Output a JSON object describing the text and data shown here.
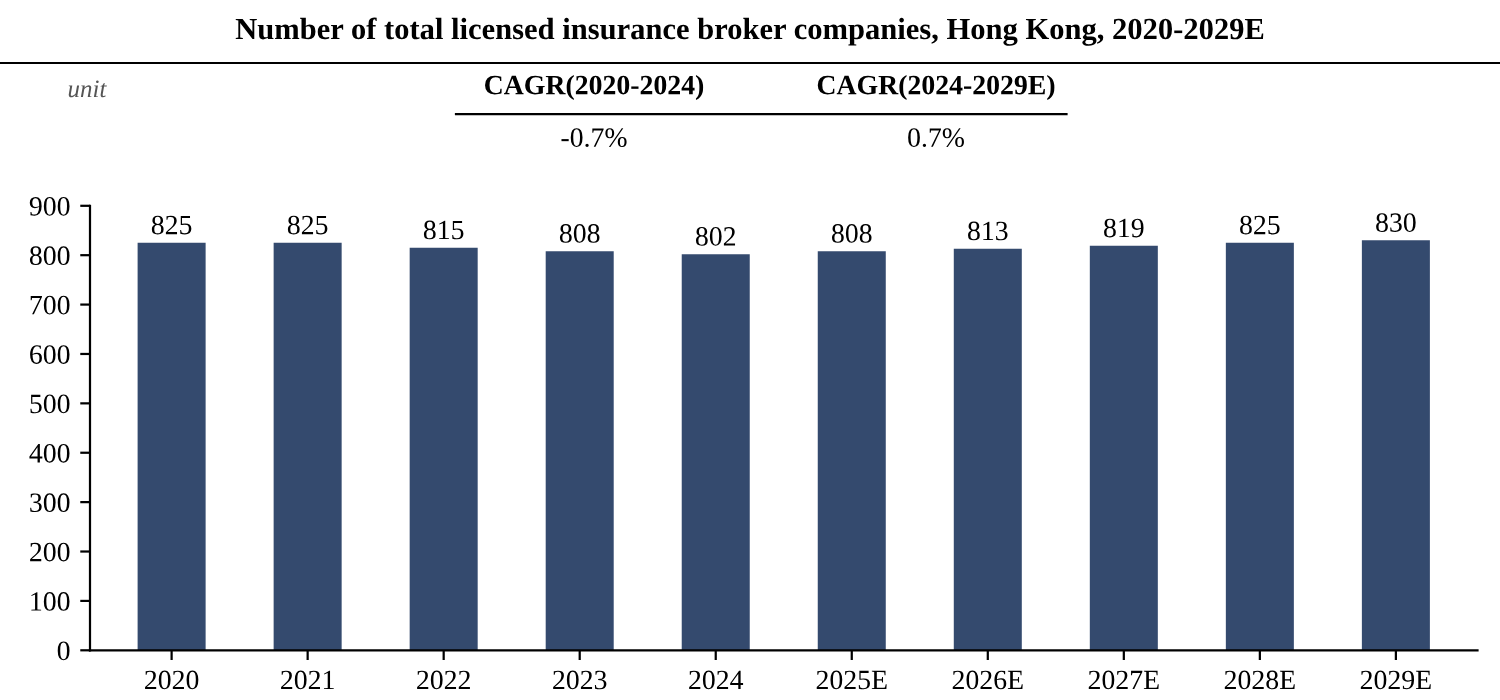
{
  "chart_data": {
    "type": "bar",
    "title": "Number of total licensed insurance broker companies, Hong Kong, 2020-2029E",
    "annotations": [
      "unit",
      "CAGR(2020-2024)",
      "CAGR(2024-2029E)",
      "-0.7%",
      "0.7%"
    ],
    "categories": [
      "2020",
      "2021",
      "2022",
      "2023",
      "2024",
      "2025E",
      "2026E",
      "2027E",
      "2028E",
      "2029E"
    ],
    "values": [
      825,
      825,
      815,
      808,
      802,
      808,
      813,
      819,
      825,
      830
    ],
    "color": "#344a6e",
    "ylim": [
      0,
      900
    ],
    "yticks": [
      0,
      100,
      200,
      300,
      400,
      500,
      600,
      700,
      800,
      900
    ],
    "data_labels": true,
    "grid": false,
    "legend": false
  }
}
